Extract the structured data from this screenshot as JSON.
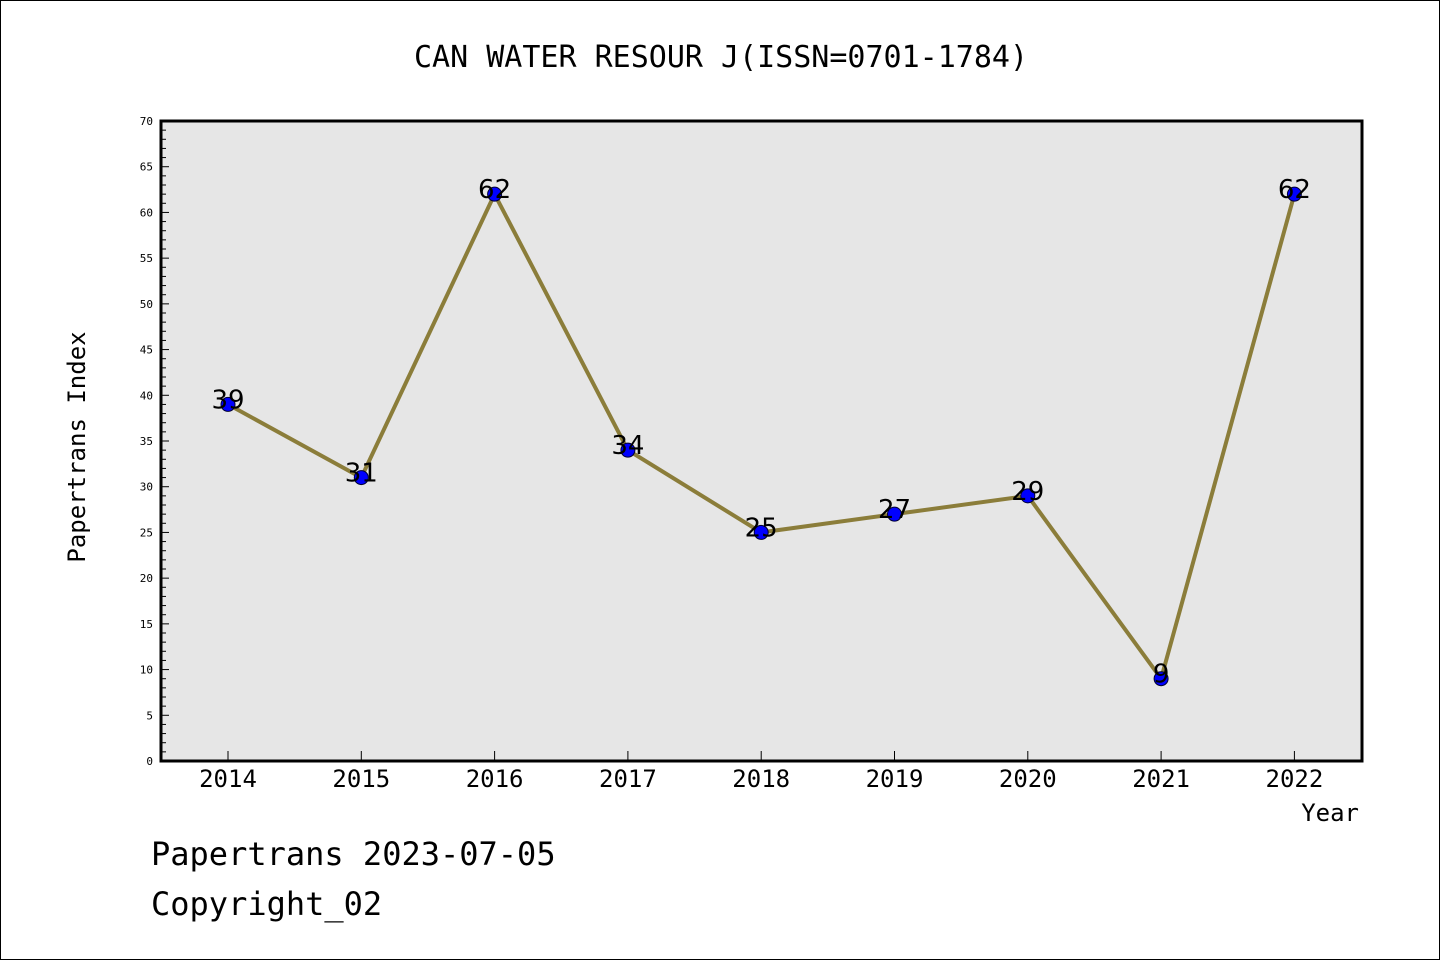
{
  "chart_data": {
    "type": "line",
    "title": "CAN WATER RESOUR J(ISSN=0701-1784)",
    "xlabel": "Year",
    "ylabel": "Papertrans Index",
    "categories": [
      "2014",
      "2015",
      "2016",
      "2017",
      "2018",
      "2019",
      "2020",
      "2021",
      "2022"
    ],
    "values": [
      39,
      31,
      62,
      34,
      25,
      27,
      29,
      9,
      62
    ],
    "data_labels": [
      "39",
      "31",
      "62",
      "34",
      "25",
      "27",
      "29",
      "9",
      "62"
    ],
    "y_ticks": [
      "0",
      "5",
      "10",
      "15",
      "20",
      "25",
      "30",
      "35",
      "40",
      "45",
      "50",
      "55",
      "60",
      "65",
      "70"
    ],
    "ylim": [
      0,
      70
    ],
    "grid": false,
    "legend": "none",
    "line_color": "#8b7d3a",
    "marker_color": "#0000ff",
    "plot_background": "#e6e6e6"
  },
  "footer": {
    "line1": "Papertrans 2023-07-05",
    "line2": "Copyright_02"
  }
}
